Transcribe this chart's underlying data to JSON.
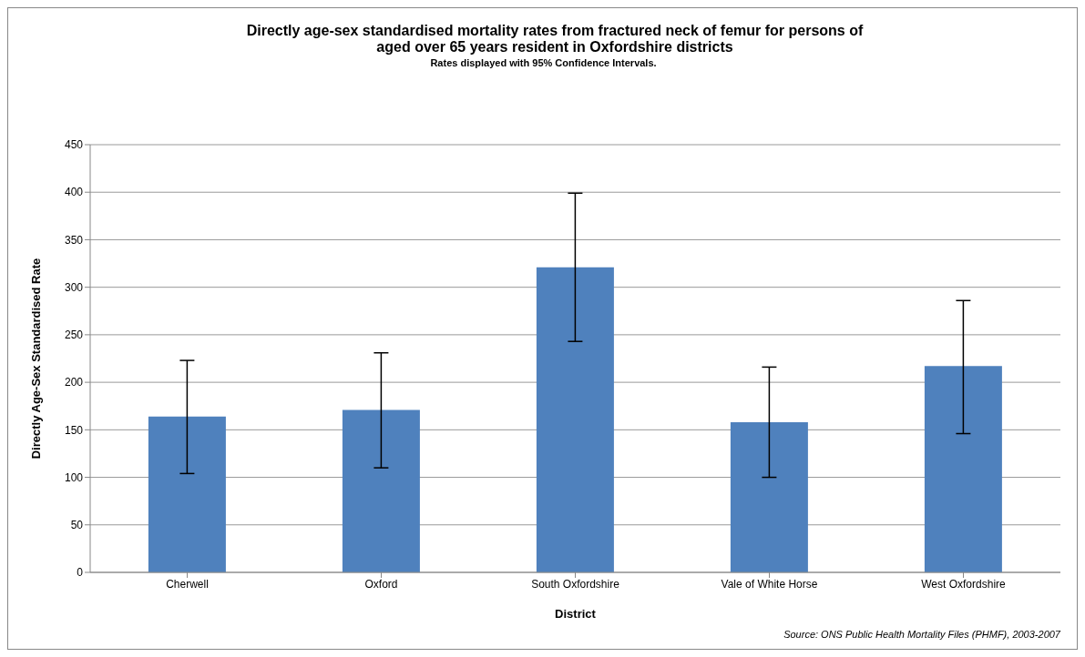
{
  "chart_data": {
    "type": "bar",
    "title": "Directly age-sex standardised mortality rates from fractured neck of femur for persons of aged over 65 years resident in Oxfordshire districts",
    "subtitle": "Rates displayed with 95% Confidence Intervals.",
    "xlabel": "District",
    "ylabel": "Directly Age-Sex  Standardised  Rate",
    "annotations": [
      "Source: ONS Public Health Mortality Files (PHMF), 2003-2007"
    ],
    "categories": [
      "Cherwell",
      "Oxford",
      "South Oxfordshire",
      "Vale of White Horse",
      "West Oxfordshire"
    ],
    "values": [
      164,
      171,
      321,
      158,
      217
    ],
    "errors": [
      [
        104,
        223
      ],
      [
        110,
        231
      ],
      [
        243,
        399
      ],
      [
        100,
        216
      ],
      [
        146,
        286
      ]
    ],
    "color": "#4f81bd",
    "ylim": [
      0,
      450
    ],
    "yticks": [
      0,
      50,
      100,
      150,
      200,
      250,
      300,
      350,
      400,
      450
    ],
    "grid": "y",
    "legend": false
  }
}
